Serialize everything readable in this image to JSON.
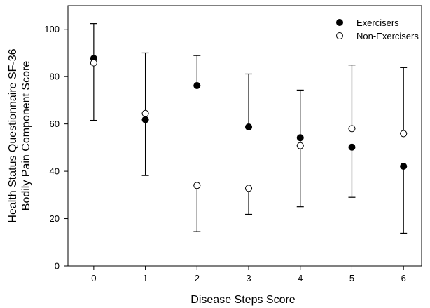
{
  "chart_data": {
    "type": "scatter",
    "xlabel": "Disease Steps Score",
    "ylabel_lines": [
      "Health Status Questionnaire SF-36",
      "Bodily Pain Component Score"
    ],
    "x_ticks": [
      0,
      1,
      2,
      3,
      4,
      5,
      6
    ],
    "y_ticks": [
      0,
      20,
      40,
      60,
      80,
      100
    ],
    "xlim": [
      -0.5,
      6.35
    ],
    "ylim": [
      0,
      110
    ],
    "grid": false,
    "legend_position": "top-right",
    "series": [
      {
        "name": "Exercisers",
        "marker": "filled-circle",
        "color": "#000000",
        "x": [
          0,
          1,
          2,
          3,
          4,
          5,
          6
        ],
        "y": [
          87.7,
          61.8,
          76.2,
          58.7,
          54.2,
          50.2,
          42.1
        ],
        "err_low": [
          61.5,
          38.2,
          76.2,
          58.7,
          25.0,
          29.0,
          13.8
        ],
        "err_high": [
          87.7,
          61.8,
          88.9,
          81.1,
          54.2,
          50.2,
          42.1
        ]
      },
      {
        "name": "Non-Exercisers",
        "marker": "open-circle",
        "color": "#000000",
        "x": [
          0,
          1,
          2,
          3,
          4,
          5,
          6
        ],
        "y": [
          85.8,
          64.4,
          34.0,
          32.8,
          50.8,
          58.0,
          55.9
        ],
        "err_low": [
          85.8,
          64.4,
          14.5,
          21.8,
          50.8,
          58.0,
          55.9
        ],
        "err_high": [
          102.4,
          90.0,
          34.0,
          32.8,
          74.3,
          84.9,
          83.8
        ]
      }
    ]
  }
}
